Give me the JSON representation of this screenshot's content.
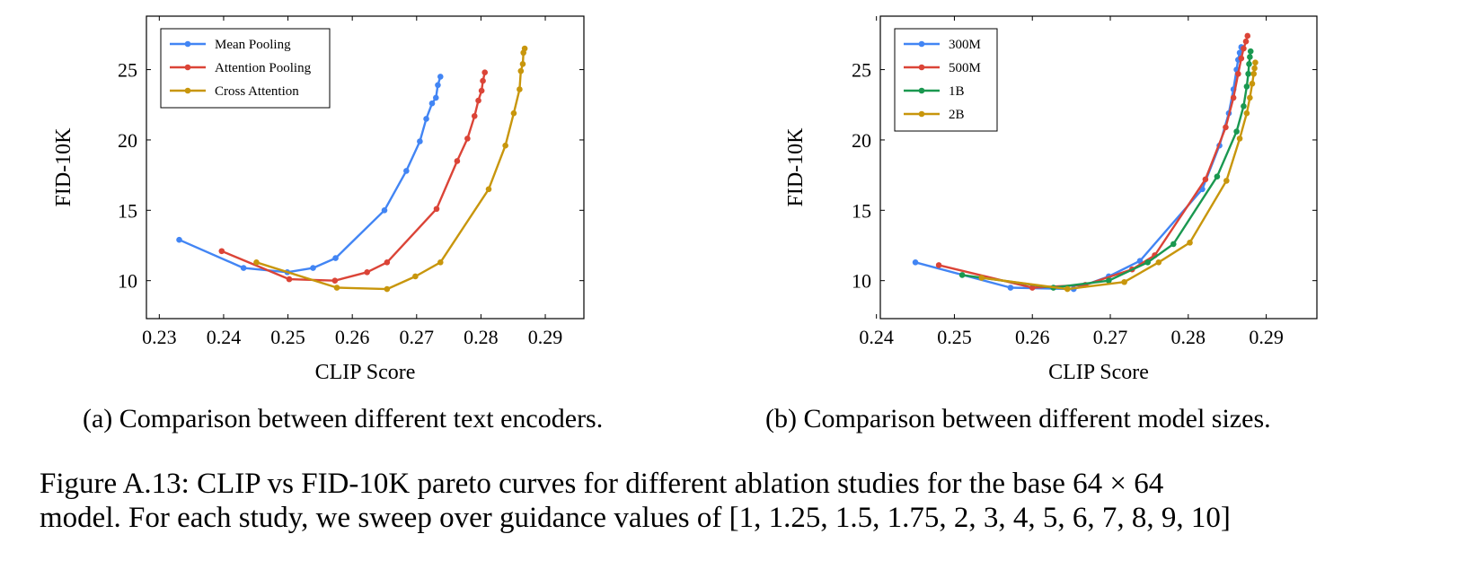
{
  "chart_data": [
    {
      "type": "line",
      "title": "",
      "xlabel": "CLIP Score",
      "ylabel": "FID-10K",
      "xlim": [
        0.228,
        0.296
      ],
      "ylim": [
        7.3,
        28.8
      ],
      "xticks": [
        0.23,
        0.24,
        0.25,
        0.26,
        0.27,
        0.28,
        0.29
      ],
      "xtick_labels": [
        "0.23",
        "0.24",
        "0.25",
        "0.26",
        "0.27",
        "0.28",
        "0.29"
      ],
      "yticks": [
        10,
        15,
        20,
        25
      ],
      "ytick_labels": [
        "10",
        "15",
        "20",
        "25"
      ],
      "grid": false,
      "legend_position": "top-left",
      "series": [
        {
          "name": "Mean Pooling",
          "color": "#4285f4",
          "x": [
            0.2331,
            0.2431,
            0.2499,
            0.2539,
            0.2574,
            0.265,
            0.2684,
            0.2705,
            0.2715,
            0.2724,
            0.273,
            0.2733,
            0.2737
          ],
          "y": [
            12.9,
            10.9,
            10.6,
            10.9,
            11.6,
            15.0,
            17.8,
            19.9,
            21.5,
            22.6,
            23.0,
            23.9,
            24.5
          ]
        },
        {
          "name": "Attention Pooling",
          "color": "#db4437",
          "x": [
            0.2397,
            0.2502,
            0.2573,
            0.2623,
            0.2654,
            0.2731,
            0.2763,
            0.2779,
            0.279,
            0.2796,
            0.2801,
            0.2803,
            0.2806
          ],
          "y": [
            12.1,
            10.1,
            10.0,
            10.6,
            11.3,
            15.1,
            18.5,
            20.1,
            21.7,
            22.8,
            23.5,
            24.2,
            24.8
          ]
        },
        {
          "name": "Cross Attention",
          "color": "#c8960c",
          "x": [
            0.2451,
            0.2576,
            0.2654,
            0.2698,
            0.2737,
            0.2812,
            0.2838,
            0.2851,
            0.286,
            0.2862,
            0.2865,
            0.2866,
            0.2868
          ],
          "y": [
            11.3,
            9.5,
            9.4,
            10.3,
            11.3,
            16.5,
            19.6,
            21.9,
            23.6,
            24.9,
            25.4,
            26.2,
            26.5
          ]
        }
      ]
    },
    {
      "type": "line",
      "title": "",
      "xlabel": "CLIP Score",
      "ylabel": "FID-10K",
      "xlim": [
        0.2405,
        0.2965
      ],
      "ylim": [
        7.3,
        28.8
      ],
      "xticks": [
        0.24,
        0.25,
        0.26,
        0.27,
        0.28,
        0.29
      ],
      "xtick_labels": [
        "0.24",
        "0.25",
        "0.26",
        "0.27",
        "0.28",
        "0.29"
      ],
      "yticks": [
        10,
        15,
        20,
        25
      ],
      "ytick_labels": [
        "10",
        "15",
        "20",
        "25"
      ],
      "grid": false,
      "legend_position": "top-left",
      "series": [
        {
          "name": "300M",
          "color": "#4285f4",
          "x": [
            0.245,
            0.2572,
            0.2653,
            0.2698,
            0.2738,
            0.2818,
            0.284,
            0.2852,
            0.2858,
            0.2862,
            0.2864,
            0.2866,
            0.2868
          ],
          "y": [
            11.3,
            9.5,
            9.4,
            10.3,
            11.4,
            16.5,
            19.6,
            21.9,
            23.6,
            25.0,
            25.7,
            26.2,
            26.6
          ]
        },
        {
          "name": "500M",
          "color": "#db4437",
          "x": [
            0.248,
            0.26,
            0.2668,
            0.2728,
            0.2757,
            0.2822,
            0.2848,
            0.2858,
            0.2864,
            0.2868,
            0.2871,
            0.2874,
            0.2876
          ],
          "y": [
            11.1,
            9.5,
            9.7,
            10.8,
            11.8,
            17.2,
            20.9,
            23.0,
            24.7,
            25.8,
            26.5,
            27.0,
            27.4
          ]
        },
        {
          "name": "1B",
          "color": "#1a9850",
          "x": [
            0.251,
            0.2627,
            0.2698,
            0.2748,
            0.2781,
            0.2837,
            0.2862,
            0.2871,
            0.2875,
            0.2877,
            0.2878,
            0.2879,
            0.288
          ],
          "y": [
            10.4,
            9.5,
            10.0,
            11.3,
            12.6,
            17.4,
            20.6,
            22.4,
            23.8,
            24.7,
            25.4,
            25.9,
            26.3
          ]
        },
        {
          "name": "2B",
          "color": "#c8960c",
          "x": [
            0.2535,
            0.2645,
            0.2718,
            0.2762,
            0.2802,
            0.2849,
            0.2866,
            0.2875,
            0.2879,
            0.2882,
            0.2884,
            0.2885,
            0.2886
          ],
          "y": [
            10.2,
            9.4,
            9.9,
            11.3,
            12.7,
            17.1,
            20.1,
            21.9,
            23.0,
            24.0,
            24.7,
            25.1,
            25.5
          ]
        }
      ]
    }
  ],
  "subcaptions": {
    "a": "(a) Comparison between different text encoders.",
    "b": "(b) Comparison between different model sizes."
  },
  "caption": {
    "line1": "Figure A.13: CLIP vs FID-10K pareto curves for different ablation studies for the base 64 × 64",
    "line2": "model. For each study, we sweep over guidance values of [1, 1.25, 1.5, 1.75, 2, 3, 4, 5, 6, 7, 8, 9, 10]"
  }
}
